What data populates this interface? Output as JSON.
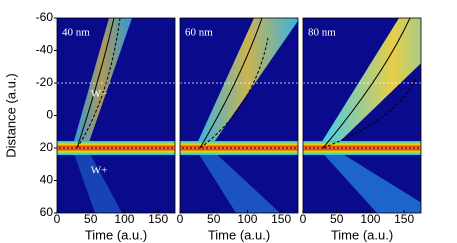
{
  "chart_data": [
    {
      "type": "heatmap",
      "label": "40 nm",
      "xlabel": "Time (a.u.)",
      "ylabel": "Distance (a.u.)",
      "xlim": [
        0,
        175
      ],
      "ylim": [
        -60,
        60
      ],
      "y_inverted": true,
      "xticks": [
        0,
        50,
        100,
        150
      ],
      "yticks": [
        -60,
        -40,
        -20,
        0,
        20,
        40,
        60
      ],
      "reference_line": -20,
      "source_line": 20,
      "spread": 1,
      "annotations": [
        {
          "text": "W−",
          "x": 50,
          "y": -13
        },
        {
          "text": "W+",
          "x": 50,
          "y": 34
        }
      ]
    },
    {
      "type": "heatmap",
      "label": "60 nm",
      "xlabel": "Time (a.u.)",
      "xlim": [
        0,
        175
      ],
      "ylim": [
        -60,
        60
      ],
      "y_inverted": true,
      "xticks": [
        0,
        50,
        100,
        150
      ],
      "reference_line": -20,
      "source_line": 20,
      "spread": 2
    },
    {
      "type": "heatmap",
      "label": "80 nm",
      "xlabel": "Time (a.u.)",
      "xlim": [
        0,
        175
      ],
      "ylim": [
        -60,
        60
      ],
      "y_inverted": true,
      "xticks": [
        0,
        50,
        100,
        150
      ],
      "reference_line": -20,
      "source_line": 20,
      "spread": 3
    }
  ]
}
